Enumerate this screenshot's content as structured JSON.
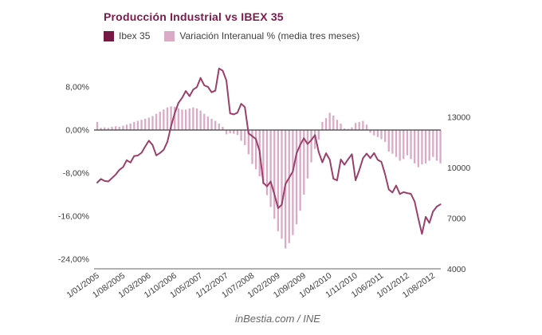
{
  "header": {
    "title": "Producción Industrial vs IBEX 35",
    "title_color": "#7d1a4b"
  },
  "legend": [
    {
      "label": "Ibex 35",
      "color": "#7a1845"
    },
    {
      "label": "Variación Interanual % (media tres meses)",
      "color": "#dbaac6"
    }
  ],
  "footer": {
    "credit": "inBestia.com / INE"
  },
  "chart_data": {
    "type": "combo (bar + line)",
    "title": "Producción Industrial vs IBEX 35",
    "frequency": "monthly",
    "start": "1/01/2005",
    "end": "1/10/2012",
    "grid": "off",
    "x_ticks": [
      {
        "label": "1/01/2005",
        "month_index": 0
      },
      {
        "label": "1/08/2005",
        "month_index": 7
      },
      {
        "label": "1/03/2006",
        "month_index": 14
      },
      {
        "label": "1/10/2006",
        "month_index": 21
      },
      {
        "label": "1/05/2007",
        "month_index": 28
      },
      {
        "label": "1/12/2007",
        "month_index": 35
      },
      {
        "label": "1/07/2008",
        "month_index": 42
      },
      {
        "label": "1/02/2009",
        "month_index": 49
      },
      {
        "label": "1/09/2009",
        "month_index": 56
      },
      {
        "label": "1/04/2010",
        "month_index": 63
      },
      {
        "label": "1/11/2010",
        "month_index": 70
      },
      {
        "label": "1/06/2011",
        "month_index": 77
      },
      {
        "label": "1/01/2012",
        "month_index": 84
      },
      {
        "label": "1/08/2012",
        "month_index": 91
      }
    ],
    "left_axis": {
      "unit": "%",
      "range": [
        -26,
        10
      ],
      "ticks": [
        {
          "label": "8,00%",
          "value": 8
        },
        {
          "label": "0,00%",
          "value": 0
        },
        {
          "label": "-8,00%",
          "value": -8
        },
        {
          "label": "-16,00%",
          "value": -16
        },
        {
          "label": "-24,00%",
          "value": -24
        }
      ]
    },
    "right_axis": {
      "unit": "index points",
      "range": [
        4000,
        16000
      ],
      "ticks": [
        {
          "label": "13000",
          "value": 13000
        },
        {
          "label": "10000",
          "value": 10000
        },
        {
          "label": "7000",
          "value": 7000
        },
        {
          "label": "4000",
          "value": 4000
        }
      ]
    },
    "series": [
      {
        "name": "Variación Interanual % (media tres meses)",
        "type": "bar",
        "axis": "left",
        "color": "#dbaac6",
        "values": [
          1.5,
          0.4,
          0.5,
          0.4,
          0.6,
          0.7,
          0.6,
          0.8,
          1.0,
          1.2,
          1.5,
          1.7,
          1.9,
          2.1,
          2.3,
          2.6,
          3.0,
          3.4,
          3.8,
          4.2,
          4.4,
          4.3,
          4.0,
          3.8,
          3.8,
          4.0,
          4.2,
          4.0,
          3.6,
          3.0,
          2.5,
          2.1,
          1.7,
          1.2,
          0.6,
          -0.8,
          -0.6,
          -0.7,
          -0.9,
          -2.0,
          -2.8,
          -4.5,
          -6.3,
          -7.3,
          -8.6,
          -10.1,
          -12.1,
          -14.3,
          -16.5,
          -18.8,
          -20.2,
          -22.0,
          -21.0,
          -19.5,
          -17.5,
          -15.0,
          -12.0,
          -9.0,
          -6.0,
          -3.5,
          -1.8,
          1.5,
          2.2,
          3.2,
          2.7,
          1.9,
          1.2,
          0.3,
          0.2,
          0.5,
          1.3,
          1.5,
          1.7,
          1.0,
          -0.5,
          -1.0,
          -1.3,
          -1.7,
          -2.2,
          -4.0,
          -4.4,
          -5.0,
          -5.7,
          -5.4,
          -4.7,
          -5.4,
          -6.2,
          -6.9,
          -6.4,
          -6.2,
          -5.7,
          -5.0,
          -5.7,
          -6.2
        ]
      },
      {
        "name": "Ibex 35",
        "type": "line",
        "axis": "right",
        "color": "#9b3f6b",
        "values": [
          9129,
          9344,
          9227,
          9199,
          9400,
          9608,
          9885,
          10049,
          10456,
          10316,
          10704,
          10734,
          10896,
          11269,
          11616,
          11354,
          10740,
          10883,
          11067,
          11547,
          12465,
          13235,
          13849,
          14147,
          14554,
          14248,
          14641,
          14788,
          15329,
          14892,
          14802,
          14479,
          14576,
          15890,
          15759,
          15182,
          13229,
          13170,
          13269,
          13798,
          13600,
          12046,
          11881,
          11707,
          10987,
          9116,
          8910,
          9196,
          8450,
          7621,
          7815,
          9038,
          9424,
          9787,
          10855,
          11365,
          11756,
          11414,
          11644,
          11940,
          10948,
          10333,
          10871,
          10492,
          9359,
          9263,
          10499,
          10187,
          10514,
          10812,
          9267,
          9859,
          10571,
          10850,
          10576,
          10879,
          10476,
          10359,
          9630,
          8718,
          8546,
          8954,
          8449,
          8566,
          8509,
          8465,
          8008,
          7011,
          6090,
          7102,
          6738,
          7420,
          7708,
          7842
        ]
      }
    ]
  }
}
